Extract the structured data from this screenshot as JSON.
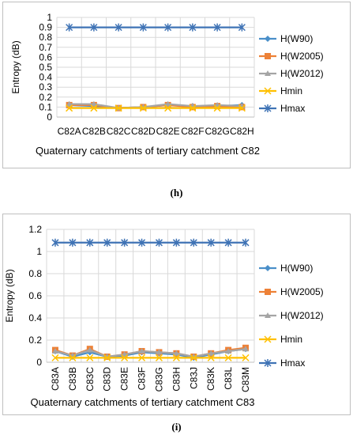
{
  "captions": {
    "h": "(h)",
    "i": "(i)"
  },
  "legend_labels": [
    "H(W90)",
    "H(W2005)",
    "H(W2012)",
    "Hmin",
    "Hmax"
  ],
  "chart_data": [
    {
      "type": "line",
      "panel": "h",
      "categories": [
        "C82A",
        "C82B",
        "C82C",
        "C82D",
        "C82E",
        "C82F",
        "C82G",
        "C82H"
      ],
      "ylabel": "Entropy (dB)",
      "xlabel": "Quaternary catchments of tertiary catchment C82",
      "ylim": [
        0,
        1
      ],
      "yticks": [
        0,
        0.1,
        0.2,
        0.3,
        0.4,
        0.5,
        0.6,
        0.7,
        0.8,
        0.9,
        1
      ],
      "grid": true,
      "legend_position": "right",
      "series": [
        {
          "name": "H(W90)",
          "color": "#4a8fc9",
          "marker": "diamond",
          "values": [
            0.12,
            0.11,
            0.09,
            0.1,
            0.12,
            0.11,
            0.11,
            0.12
          ]
        },
        {
          "name": "H(W2005)",
          "color": "#ed8137",
          "marker": "square",
          "values": [
            0.12,
            0.12,
            0.09,
            0.1,
            0.12,
            0.1,
            0.11,
            0.1
          ]
        },
        {
          "name": "H(W2012)",
          "color": "#a5a5a5",
          "marker": "triangle",
          "values": [
            0.13,
            0.13,
            0.09,
            0.1,
            0.13,
            0.11,
            0.12,
            0.11
          ]
        },
        {
          "name": "Hmin",
          "color": "#ffc000",
          "marker": "x",
          "values": [
            0.09,
            0.09,
            0.09,
            0.09,
            0.09,
            0.09,
            0.09,
            0.09
          ]
        },
        {
          "name": "Hmax",
          "color": "#3f73b5",
          "marker": "star",
          "values": [
            0.9,
            0.9,
            0.9,
            0.9,
            0.9,
            0.9,
            0.9,
            0.9
          ]
        }
      ]
    },
    {
      "type": "line",
      "panel": "i",
      "categories": [
        "C83A",
        "C83B",
        "C83C",
        "C83D",
        "C83E",
        "C83F",
        "C83G",
        "C83H",
        "C83J",
        "C83K",
        "C83L",
        "C83M"
      ],
      "ylabel": "Entropy (dB)",
      "xlabel": "Quaternary catchments of tertiary catchment C83",
      "ylim": [
        0,
        1.2
      ],
      "yticks": [
        0,
        0.2,
        0.4,
        0.6,
        0.8,
        1,
        1.2
      ],
      "grid": true,
      "legend_position": "right",
      "series": [
        {
          "name": "H(W90)",
          "color": "#4a8fc9",
          "marker": "diamond",
          "values": [
            0.1,
            0.05,
            0.09,
            0.05,
            0.06,
            0.09,
            0.08,
            0.07,
            0.04,
            0.07,
            0.1,
            0.12
          ]
        },
        {
          "name": "H(W2005)",
          "color": "#ed8137",
          "marker": "square",
          "values": [
            0.11,
            0.06,
            0.12,
            0.05,
            0.07,
            0.1,
            0.09,
            0.08,
            0.05,
            0.08,
            0.11,
            0.13
          ]
        },
        {
          "name": "H(W2012)",
          "color": "#a5a5a5",
          "marker": "triangle",
          "values": [
            0.1,
            0.06,
            0.11,
            0.05,
            0.07,
            0.1,
            0.09,
            0.08,
            0.05,
            0.08,
            0.1,
            0.12
          ]
        },
        {
          "name": "Hmin",
          "color": "#ffc000",
          "marker": "x",
          "values": [
            0.04,
            0.04,
            0.04,
            0.04,
            0.04,
            0.04,
            0.04,
            0.04,
            0.04,
            0.04,
            0.04,
            0.04
          ]
        },
        {
          "name": "Hmax",
          "color": "#3f73b5",
          "marker": "star",
          "values": [
            1.08,
            1.08,
            1.08,
            1.08,
            1.08,
            1.08,
            1.08,
            1.08,
            1.08,
            1.08,
            1.08,
            1.08
          ]
        }
      ]
    }
  ]
}
